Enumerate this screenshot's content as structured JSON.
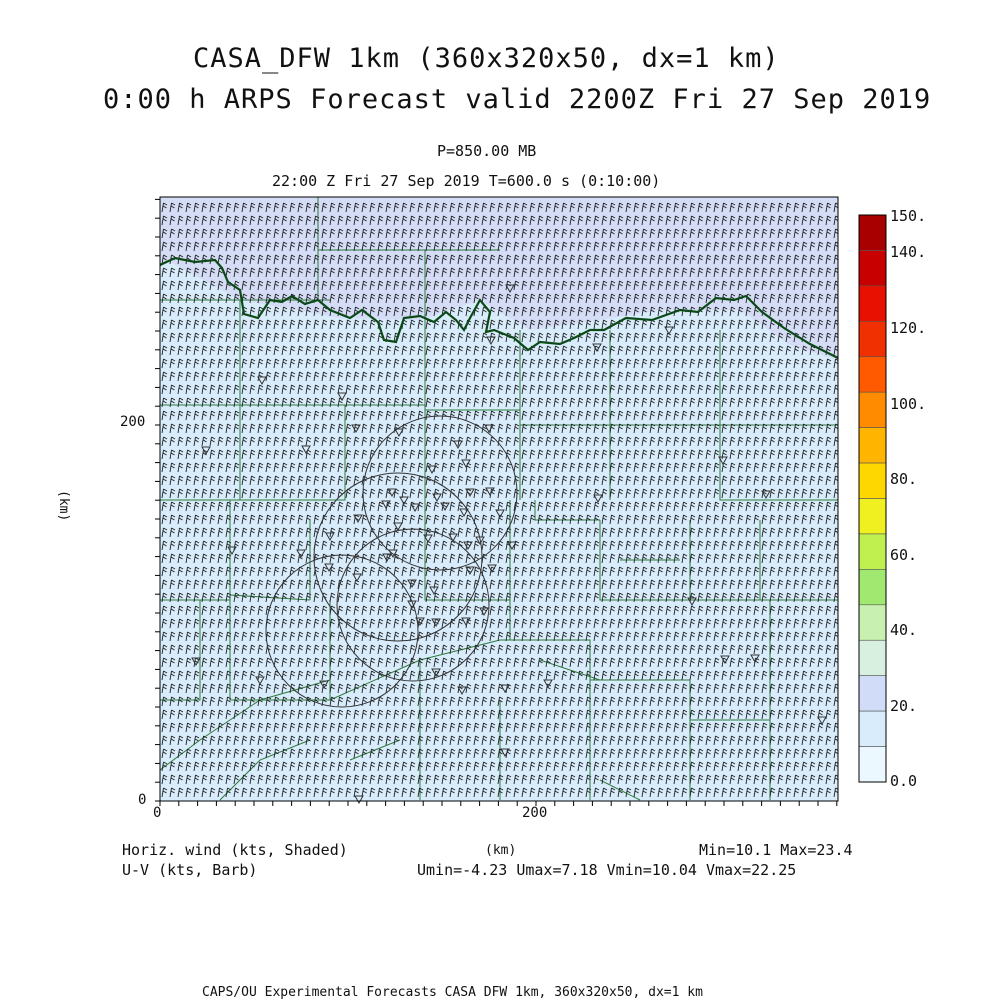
{
  "title_line1": "CASA_DFW 1km (360x320x50, dx=1 km)",
  "title_line2": "0:00 h ARPS Forecast valid 2200Z Fri 27 Sep 2019",
  "level_label": "P=850.00 MB",
  "time_label": "22:00 Z Fri 27 Sep 2019   T=600.0 s (0:10:00)",
  "axes": {
    "x_unit": "(km)",
    "y_unit": "(km)",
    "x_ticks": [
      "0",
      "200"
    ],
    "y_ticks": [
      "0",
      "200"
    ]
  },
  "colorbar": {
    "labels": [
      "150.",
      "140.",
      "120.",
      "100.",
      "80.",
      "60.",
      "40.",
      "20.",
      "0.0"
    ],
    "colors": [
      "#a80000",
      "#c80000",
      "#e81000",
      "#f03000",
      "#ff5a00",
      "#ff8c00",
      "#ffb400",
      "#ffd700",
      "#f0f020",
      "#c0f050",
      "#a0e870",
      "#c8f0b0",
      "#d8f0e0",
      "#d0dcf8",
      "#d8ecfc",
      "#ecf8ff"
    ]
  },
  "field_info": {
    "shaded_label": "Horiz. wind (kts, Shaded)",
    "barb_label": "U-V (kts, Barb)",
    "minmax": "Min=10.1 Max=23.4",
    "uv_stats": "Umin=-4.23 Umax=7.18 Vmin=10.04 Vmax=22.25"
  },
  "footer": "CAPS/OU Experimental Forecasts  CASA DFW 1km, 360x320x50, dx=1 km",
  "map_colors": {
    "base_fill": "#d8ecfc",
    "high_fill": "#d4dcf6",
    "county_lines": "#2d7a3a",
    "state_line": "#0b4a17",
    "barb_color": "#222222"
  }
}
